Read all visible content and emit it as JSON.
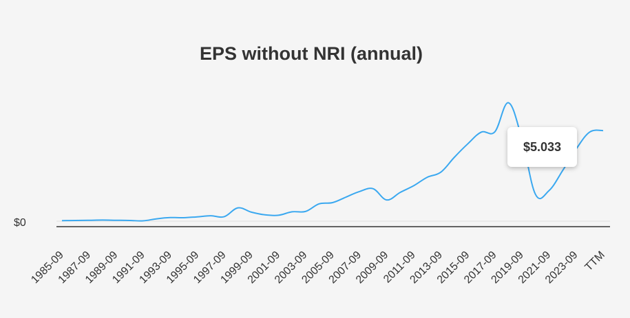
{
  "chart_data": {
    "type": "line",
    "title": "EPS without NRI (annual)",
    "y_tick_label": "$0",
    "tooltip_value": "$5.033",
    "line_color": "#3aa8f0",
    "x_tick_labels": [
      "1985-09",
      "1987-09",
      "1989-09",
      "1991-09",
      "1993-09",
      "1995-09",
      "1997-09",
      "1999-09",
      "2001-09",
      "2003-09",
      "2005-09",
      "2007-09",
      "2009-09",
      "2011-09",
      "2013-09",
      "2015-09",
      "2017-09",
      "2019-09",
      "2021-09",
      "2023-09",
      "TTM"
    ],
    "x": [
      "1985-09",
      "1986-09",
      "1987-09",
      "1988-09",
      "1989-09",
      "1990-09",
      "1991-09",
      "1992-09",
      "1993-09",
      "1994-09",
      "1995-09",
      "1996-09",
      "1997-09",
      "1998-09",
      "1999-09",
      "2000-09",
      "2001-09",
      "2002-09",
      "2003-09",
      "2004-09",
      "2005-09",
      "2006-09",
      "2007-09",
      "2008-09",
      "2009-09",
      "2010-09",
      "2011-09",
      "2012-09",
      "2013-09",
      "2014-09",
      "2015-09",
      "2016-09",
      "2017-09",
      "2018-09",
      "2019-09",
      "2020-09",
      "2021-09",
      "2022-09",
      "2023-09",
      "2024-09",
      "TTM"
    ],
    "values": [
      0.03,
      0.04,
      0.05,
      0.06,
      0.05,
      0.04,
      0.02,
      0.13,
      0.2,
      0.19,
      0.24,
      0.3,
      0.25,
      0.74,
      0.5,
      0.35,
      0.33,
      0.52,
      0.54,
      0.96,
      1.03,
      1.34,
      1.65,
      1.8,
      1.18,
      1.6,
      1.97,
      2.44,
      2.72,
      3.55,
      4.3,
      4.95,
      4.97,
      6.58,
      4.56,
      1.48,
      1.7,
      2.8,
      4.0,
      4.95,
      5.033
    ],
    "ylim": [
      0,
      7.0
    ],
    "grid": false
  }
}
